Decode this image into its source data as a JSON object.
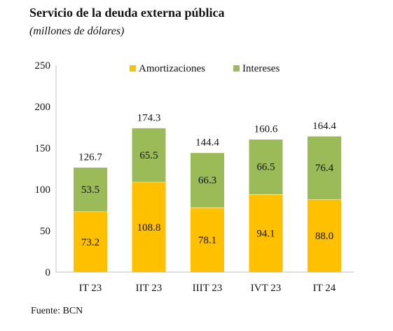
{
  "title": "Servicio de la deuda externa pública",
  "subtitle": "(millones de dólares)",
  "source": "Fuente: BCN",
  "chart_data": {
    "type": "bar",
    "stacked": true,
    "categories": [
      "IT 23",
      "IIT 23",
      "IIIT 23",
      "IVT 23",
      "IT 24"
    ],
    "series": [
      {
        "name": "Amortizaciones",
        "color": "#FFC000",
        "values": [
          73.2,
          108.8,
          78.1,
          94.1,
          88.0
        ],
        "labels": [
          "73.2",
          "108.8",
          "78.1",
          "94.1",
          "88.0"
        ]
      },
      {
        "name": "Intereses",
        "color": "#9BBB59",
        "values": [
          53.5,
          65.5,
          66.3,
          66.5,
          76.4
        ],
        "labels": [
          "53.5",
          "65.5",
          "66.3",
          "66.5",
          "76.4"
        ]
      }
    ],
    "totals": [
      "126.7",
      "174.3",
      "144.4",
      "160.6",
      "164.4"
    ],
    "ylim": [
      0,
      250
    ],
    "yticks": [
      "0",
      "50",
      "100",
      "150",
      "200",
      "250"
    ],
    "legend_position": "top-center",
    "grid": false
  }
}
